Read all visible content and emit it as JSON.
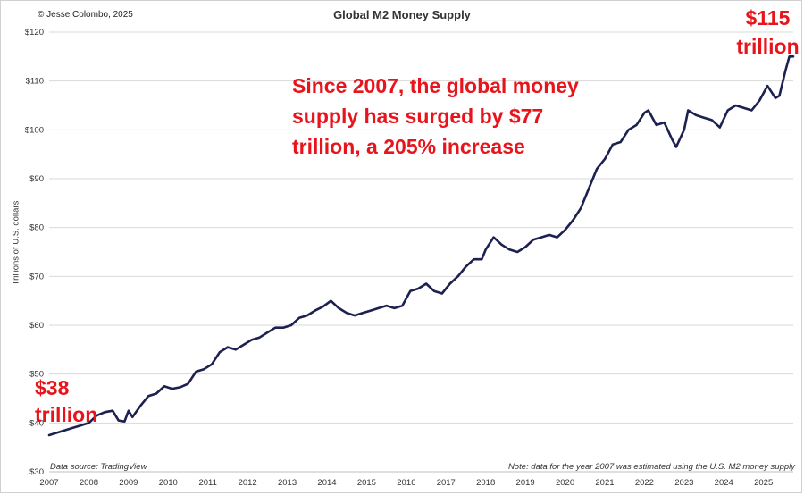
{
  "chart_data": {
    "type": "line",
    "title": "Global M2 Money Supply",
    "ylabel": "Trillions of U.S. dollars",
    "xlabel": "",
    "ylim": [
      30,
      120
    ],
    "xlim": [
      2007.0,
      2025.75
    ],
    "grid": "horizontal",
    "legend": "none",
    "line_color": "#1c2150",
    "y_ticks": [
      "$30",
      "$40",
      "$50",
      "$60",
      "$70",
      "$80",
      "$90",
      "$100",
      "$110",
      "$120"
    ],
    "y_tick_values": [
      30,
      40,
      50,
      60,
      70,
      80,
      90,
      100,
      110,
      120
    ],
    "x_ticks": [
      "2007",
      "2008",
      "2009",
      "2010",
      "2011",
      "2012",
      "2013",
      "2014",
      "2015",
      "2016",
      "2017",
      "2018",
      "2019",
      "2020",
      "2021",
      "2022",
      "2023",
      "2024",
      "2025"
    ],
    "x_tick_values": [
      2007,
      2008,
      2009,
      2010,
      2011,
      2012,
      2013,
      2014,
      2015,
      2016,
      2017,
      2018,
      2019,
      2020,
      2021,
      2022,
      2023,
      2024,
      2025
    ],
    "series": [
      {
        "x": [
          2007.0,
          2007.2,
          2007.4,
          2007.6,
          2007.8,
          2008.0,
          2008.2,
          2008.4,
          2008.6,
          2008.75,
          2008.9,
          2009.0,
          2009.1,
          2009.3,
          2009.5,
          2009.7,
          2009.9,
          2010.1,
          2010.3,
          2010.5,
          2010.7,
          2010.9,
          2011.1,
          2011.3,
          2011.5,
          2011.7,
          2011.9,
          2012.1,
          2012.3,
          2012.5,
          2012.7,
          2012.9,
          2013.1,
          2013.3,
          2013.5,
          2013.7,
          2013.9,
          2014.1,
          2014.3,
          2014.5,
          2014.7,
          2014.9,
          2015.1,
          2015.3,
          2015.5,
          2015.7,
          2015.9,
          2016.1,
          2016.3,
          2016.5,
          2016.7,
          2016.9,
          2017.1,
          2017.3,
          2017.5,
          2017.7,
          2017.9,
          2018.0,
          2018.2,
          2018.4,
          2018.6,
          2018.8,
          2019.0,
          2019.2,
          2019.4,
          2019.6,
          2019.8,
          2020.0,
          2020.2,
          2020.4,
          2020.6,
          2020.8,
          2021.0,
          2021.2,
          2021.4,
          2021.6,
          2021.8,
          2022.0,
          2022.1,
          2022.3,
          2022.5,
          2022.7,
          2022.8,
          2023.0,
          2023.1,
          2023.3,
          2023.5,
          2023.7,
          2023.9,
          2024.1,
          2024.3,
          2024.5,
          2024.7,
          2024.9,
          2025.1,
          2025.3,
          2025.4,
          2025.55,
          2025.65,
          2025.75
        ],
        "values": [
          37.5,
          38.0,
          38.5,
          39.0,
          39.5,
          40.0,
          41.5,
          42.2,
          42.5,
          40.5,
          40.3,
          42.5,
          41.2,
          43.5,
          45.5,
          46.0,
          47.5,
          47.0,
          47.3,
          48.0,
          50.5,
          51.0,
          52.0,
          54.5,
          55.5,
          55.0,
          56.0,
          57.0,
          57.5,
          58.5,
          59.5,
          59.5,
          60.0,
          61.5,
          62.0,
          63.0,
          63.8,
          65.0,
          63.5,
          62.5,
          62.0,
          62.5,
          63.0,
          63.5,
          64.0,
          63.5,
          64.0,
          67.0,
          67.5,
          68.5,
          67.0,
          66.5,
          68.5,
          70.0,
          72.0,
          73.5,
          73.5,
          75.5,
          78.0,
          76.5,
          75.5,
          75.0,
          76.0,
          77.5,
          78.0,
          78.5,
          78.0,
          79.5,
          81.5,
          84.0,
          88.0,
          92.0,
          94.0,
          97.0,
          97.5,
          100.0,
          101.0,
          103.5,
          104.0,
          101.0,
          101.5,
          98.0,
          96.5,
          100.0,
          104.0,
          103.0,
          102.5,
          102.0,
          100.5,
          104.0,
          105.0,
          104.5,
          104.0,
          106.0,
          109.0,
          106.5,
          107.0,
          112.0,
          115.0,
          115.0
        ]
      }
    ]
  },
  "copyright": "© Jesse Colombo, 2025",
  "title": "Global M2 Money Supply",
  "ylabel": "Trillions of U.S. dollars",
  "annotations": {
    "main": "Since 2007, the global money supply has surged by $77 trillion, a 205% increase",
    "end": "$115 trillion",
    "start": "$38 trillion"
  },
  "source": "Data source: TradingView",
  "note": "Note: data for the year 2007 was estimated using the U.S. M2 money supply",
  "colors": {
    "line": "#1c2150",
    "annotation": "#e8141c",
    "grid": "#d9d9d9"
  }
}
